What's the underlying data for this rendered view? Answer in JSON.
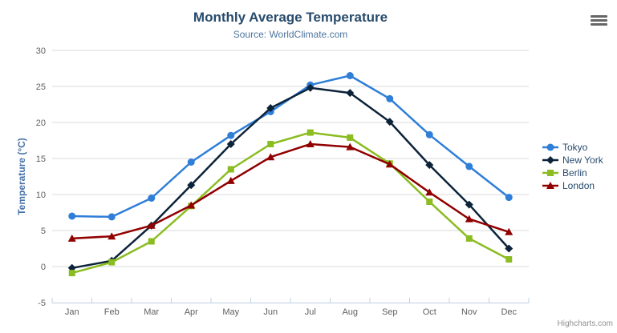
{
  "chart_data": {
    "type": "line",
    "title": "Monthly Average Temperature",
    "subtitle": "Source: WorldClimate.com",
    "xlabel": "",
    "ylabel": "Temperature (°C)",
    "ylim": [
      -5,
      30
    ],
    "yticks": [
      -5,
      0,
      5,
      10,
      15,
      20,
      25,
      30
    ],
    "grid": true,
    "legend_position": "right",
    "categories": [
      "Jan",
      "Feb",
      "Mar",
      "Apr",
      "May",
      "Jun",
      "Jul",
      "Aug",
      "Sep",
      "Oct",
      "Nov",
      "Dec"
    ],
    "series": [
      {
        "name": "Tokyo",
        "color": "#2f7ed8",
        "marker": "circle",
        "values": [
          7.0,
          6.9,
          9.5,
          14.5,
          18.2,
          21.5,
          25.2,
          26.5,
          23.3,
          18.3,
          13.9,
          9.6
        ]
      },
      {
        "name": "New York",
        "color": "#0d233a",
        "marker": "diamond",
        "values": [
          -0.2,
          0.8,
          5.7,
          11.3,
          17.0,
          22.0,
          24.8,
          24.1,
          20.1,
          14.1,
          8.6,
          2.5
        ]
      },
      {
        "name": "Berlin",
        "color": "#8bbc21",
        "marker": "square",
        "values": [
          -0.9,
          0.6,
          3.5,
          8.4,
          13.5,
          17.0,
          18.6,
          17.9,
          14.3,
          9.0,
          3.9,
          1.0
        ]
      },
      {
        "name": "London",
        "color": "#910000",
        "marker": "triangle",
        "values": [
          3.9,
          4.2,
          5.7,
          8.5,
          11.9,
          15.2,
          17.0,
          16.6,
          14.2,
          10.3,
          6.6,
          4.8
        ]
      }
    ]
  },
  "toolbar": {
    "context_menu_icon": "hamburger"
  },
  "credits": {
    "label": "Highcharts.com"
  },
  "colors": {
    "title": "#274b6d",
    "subtitle": "#4d759e",
    "axis_title": "#4572a7",
    "axis_labels": "#606060",
    "grid_line": "#d8d8d8",
    "axis_line": "#c0d0e0",
    "legend_text": "#274b6d",
    "credits_text": "#909090",
    "menu_icon": "#666666"
  }
}
